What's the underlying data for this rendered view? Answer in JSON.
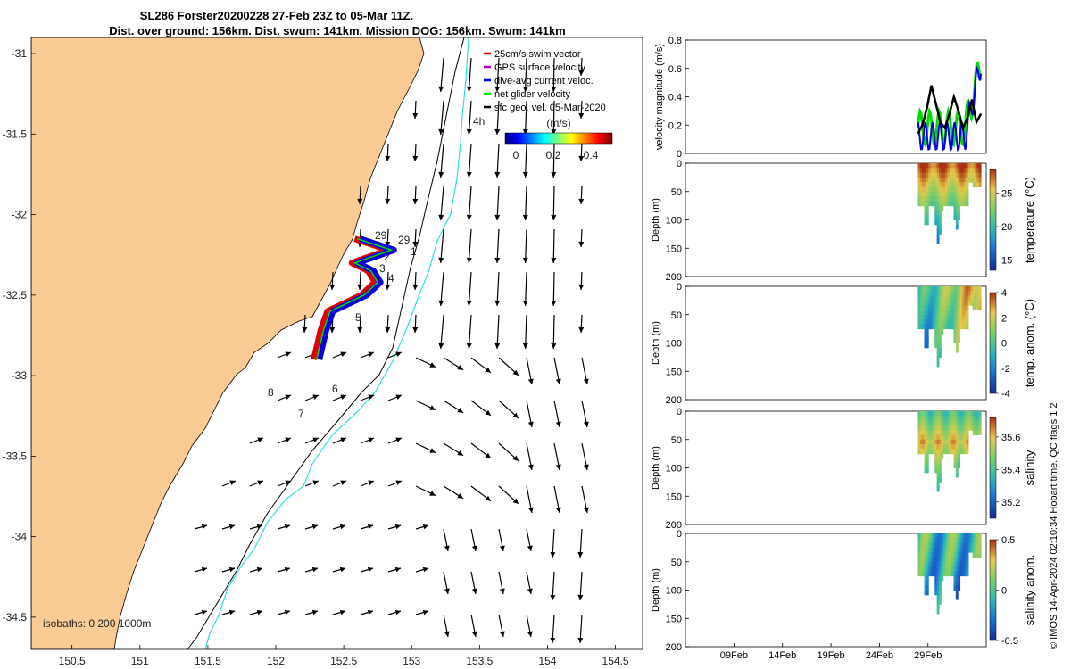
{
  "title_line1": "SL286 Forster20200228 27-Feb 23Z to 05-Mar 11Z.",
  "title_line2": "Dist. over ground: 156km. Dist. swum: 141km. Mission DOG: 156km. Swum: 141km",
  "legend": {
    "items": [
      {
        "label": "25cm/s swim vector",
        "color": "#e00000"
      },
      {
        "label": "GPS surface velocity",
        "color": "#b000b0"
      },
      {
        "label": "dive-avg current veloc.",
        "color": "#0000e0"
      },
      {
        "label": "net glider velocity",
        "color": "#00dd00"
      },
      {
        "label": "sfc geo. vel. 05-Mar-2020",
        "color": "#000000"
      }
    ],
    "speed_colorbar_label": "(m/s)",
    "speed_colorbar_ticks": [
      "0",
      "0.2",
      "0.4"
    ]
  },
  "isobaths_label": "isobaths: 0   200  1000m",
  "credit": "© IMOS 14-Apr-2024 02:10:34 Hobart time. QC flags 1  2",
  "map_labels": {
    "track_days": [
      "29",
      "1",
      "2",
      "3",
      "4",
      "5",
      "29"
    ],
    "other": [
      "4h",
      "8",
      "6",
      "7"
    ]
  },
  "colors": {
    "land": "#fbcb96",
    "coast": "#000000",
    "isobath_200": "#000000",
    "isobath_1000": "#33dddd",
    "swim": "#e00000",
    "dive_avg": "#0000e0",
    "net": "#00dd00"
  },
  "chart_data": [
    {
      "type": "map",
      "xlim": [
        150.2,
        154.7
      ],
      "ylim": [
        -34.7,
        -30.9
      ],
      "x_ticks": [
        "150.5",
        "151",
        "151.5",
        "152",
        "152.5",
        "153",
        "153.5",
        "154",
        "154.5"
      ],
      "y_ticks": [
        "-31",
        "-31.5",
        "-32",
        "-32.5",
        "-33",
        "-33.5",
        "-34",
        "-34.5"
      ],
      "glider_track": [
        [
          152.6,
          -32.15
        ],
        [
          152.85,
          -32.22
        ],
        [
          152.58,
          -32.3
        ],
        [
          152.7,
          -32.35
        ],
        [
          152.75,
          -32.42
        ],
        [
          152.65,
          -32.5
        ],
        [
          152.4,
          -32.6
        ],
        [
          152.35,
          -32.72
        ],
        [
          152.3,
          -32.9
        ]
      ]
    },
    {
      "type": "line",
      "ylabel": "velocity magnitude (m/s)",
      "ylim": [
        0,
        0.8
      ],
      "y_ticks": [
        "0",
        "0.2",
        "0.4",
        "0.6",
        "0.8"
      ],
      "series_colors": [
        "#000000",
        "#00dd00",
        "#0000e0"
      ],
      "black_series": [
        0.14,
        0.2,
        0.32,
        0.48,
        0.35,
        0.22,
        0.18,
        0.28,
        0.4,
        0.3,
        0.18,
        0.25,
        0.38,
        0.22,
        0.28
      ]
    },
    {
      "type": "heatmap",
      "ylabel": "Depth (m)",
      "cblabel": "temperature (°C)",
      "ylim": [
        200,
        0
      ],
      "y_ticks": [
        "0",
        "50",
        "100",
        "150",
        "200"
      ],
      "cb_ticks": [
        "15",
        "20",
        "25"
      ],
      "cb_range": [
        13.5,
        28.5
      ]
    },
    {
      "type": "heatmap",
      "ylabel": "Depth (m)",
      "cblabel": "temp. anom. (°C)",
      "ylim": [
        200,
        0
      ],
      "y_ticks": [
        "0",
        "50",
        "100",
        "150",
        "200"
      ],
      "cb_ticks": [
        "-4",
        "-2",
        "0",
        "2",
        "4"
      ],
      "cb_range": [
        -4,
        4
      ]
    },
    {
      "type": "heatmap",
      "ylabel": "Depth (m)",
      "cblabel": "salinity",
      "ylim": [
        200,
        0
      ],
      "y_ticks": [
        "0",
        "50",
        "100",
        "150",
        "200"
      ],
      "cb_ticks": [
        "35.2",
        "35.4",
        "35.6"
      ],
      "cb_range": [
        35.1,
        35.72
      ]
    },
    {
      "type": "heatmap",
      "ylabel": "Depth (m)",
      "cblabel": "salinity anom.",
      "ylim": [
        200,
        0
      ],
      "y_ticks": [
        "0",
        "50",
        "100",
        "150",
        "200"
      ],
      "cb_ticks": [
        "-0.5",
        "0",
        "0.5"
      ],
      "cb_range": [
        -0.5,
        0.5
      ],
      "x_ticks": [
        "09Feb",
        "14Feb",
        "19Feb",
        "24Feb",
        "29Feb"
      ]
    }
  ]
}
